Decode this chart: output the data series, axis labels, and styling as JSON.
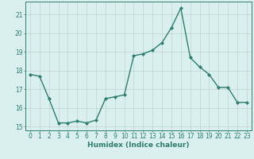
{
  "x": [
    0,
    1,
    2,
    3,
    4,
    5,
    6,
    7,
    8,
    9,
    10,
    11,
    12,
    13,
    14,
    15,
    16,
    17,
    18,
    19,
    20,
    21,
    22,
    23
  ],
  "y": [
    17.8,
    17.7,
    16.5,
    15.2,
    15.2,
    15.3,
    15.2,
    15.35,
    16.5,
    16.6,
    16.7,
    18.8,
    18.9,
    19.1,
    19.5,
    20.3,
    21.35,
    18.7,
    18.2,
    17.8,
    17.1,
    17.1,
    16.3,
    16.3
  ],
  "line_color": "#2e7d6e",
  "marker": "D",
  "marker_size": 2.0,
  "bg_color": "#d9f0ee",
  "grid_color": "#c0d4d0",
  "xlabel": "Humidex (Indice chaleur)",
  "ylim": [
    14.8,
    21.7
  ],
  "xlim": [
    -0.5,
    23.5
  ],
  "yticks": [
    15,
    16,
    17,
    18,
    19,
    20,
    21
  ],
  "xticks": [
    0,
    1,
    2,
    3,
    4,
    5,
    6,
    7,
    8,
    9,
    10,
    11,
    12,
    13,
    14,
    15,
    16,
    17,
    18,
    19,
    20,
    21,
    22,
    23
  ],
  "tick_fontsize": 5.5,
  "xlabel_fontsize": 6.5,
  "linewidth": 1.0,
  "text_color": "#2e7d6e"
}
